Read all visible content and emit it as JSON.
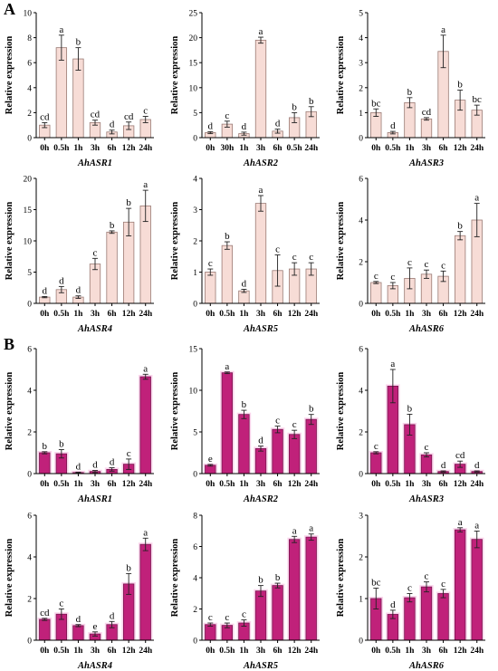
{
  "panels": [
    {
      "letter": "A"
    },
    {
      "letter": "B"
    }
  ],
  "ylabel": "Relative expression",
  "styles": {
    "A": {
      "fill": "#f7dcd6",
      "stroke": "#9a7a74"
    },
    "B": {
      "fill": "#c0217a",
      "stroke": "#7a1550",
      "glow": "#f6b3dc"
    }
  },
  "chart_data": [
    {
      "panel": "A",
      "type": "bar",
      "title": "AhASR1",
      "categories": [
        "0h",
        "0.5h",
        "1h",
        "3h",
        "6h",
        "12h",
        "24h"
      ],
      "values": [
        1.0,
        7.2,
        6.3,
        1.2,
        0.45,
        0.95,
        1.45
      ],
      "errors": [
        0.2,
        1.0,
        0.9,
        0.2,
        0.15,
        0.3,
        0.25
      ],
      "letters": [
        "cd",
        "a",
        "b",
        "cd",
        "d",
        "cd",
        "c"
      ],
      "ylim": [
        0,
        10
      ],
      "yticks": [
        0,
        2,
        4,
        6,
        8,
        10
      ]
    },
    {
      "panel": "A",
      "type": "bar",
      "title": "AhASR2",
      "categories": [
        "0h",
        "30h",
        "1h",
        "3h",
        "6h",
        "0.5h",
        "24h"
      ],
      "values": [
        1.0,
        2.7,
        0.8,
        19.5,
        1.3,
        4.0,
        5.2
      ],
      "errors": [
        0.2,
        0.6,
        0.3,
        0.6,
        0.4,
        1.0,
        1.0
      ],
      "letters": [
        "d",
        "c",
        "d",
        "a",
        "d",
        "b",
        "b"
      ],
      "ylim": [
        0,
        25
      ],
      "yticks": [
        0,
        5,
        10,
        15,
        20,
        25
      ]
    },
    {
      "panel": "A",
      "type": "bar",
      "title": "AhASR3",
      "categories": [
        "0h",
        "0.5h",
        "1h",
        "3h",
        "6h",
        "12h",
        "24h"
      ],
      "values": [
        1.0,
        0.2,
        1.4,
        0.75,
        3.45,
        1.5,
        1.1
      ],
      "errors": [
        0.15,
        0.05,
        0.2,
        0.05,
        0.65,
        0.4,
        0.2
      ],
      "letters": [
        "bc",
        "d",
        "b",
        "cd",
        "a",
        "b",
        "bc"
      ],
      "ylim": [
        0,
        5
      ],
      "yticks": [
        0,
        1,
        2,
        3,
        4,
        5
      ]
    },
    {
      "panel": "A",
      "type": "bar",
      "title": "AhASR4",
      "categories": [
        "0h",
        "0.5h",
        "1h",
        "3h",
        "6h",
        "12h",
        "24h"
      ],
      "values": [
        1.0,
        2.2,
        1.0,
        6.3,
        11.4,
        13.0,
        15.6
      ],
      "errors": [
        0.1,
        0.5,
        0.2,
        0.9,
        0.2,
        2.2,
        2.5
      ],
      "letters": [
        "d",
        "d",
        "d",
        "c",
        "b",
        "b",
        "a"
      ],
      "ylim": [
        0,
        20
      ],
      "yticks": [
        0,
        5,
        10,
        15,
        20
      ]
    },
    {
      "panel": "A",
      "type": "bar",
      "title": "AhASR5",
      "categories": [
        "0h",
        "0.5h",
        "1h",
        "3h",
        "6h",
        "12h",
        "24h"
      ],
      "values": [
        1.0,
        1.85,
        0.4,
        3.2,
        1.05,
        1.1,
        1.1
      ],
      "errors": [
        0.1,
        0.12,
        0.05,
        0.25,
        0.5,
        0.2,
        0.2
      ],
      "letters": [
        "c",
        "b",
        "d",
        "a",
        "c",
        "c",
        "c"
      ],
      "ylim": [
        0,
        4
      ],
      "yticks": [
        0,
        1,
        2,
        3,
        4
      ]
    },
    {
      "panel": "A",
      "type": "bar",
      "title": "AhASR6",
      "categories": [
        "0h",
        "0.5h",
        "1h",
        "3h",
        "6h",
        "12h",
        "24h"
      ],
      "values": [
        1.0,
        0.85,
        1.2,
        1.4,
        1.3,
        3.25,
        4.0
      ],
      "errors": [
        0.05,
        0.15,
        0.5,
        0.2,
        0.25,
        0.2,
        0.8
      ],
      "letters": [
        "c",
        "c",
        "c",
        "c",
        "c",
        "b",
        "a"
      ],
      "ylim": [
        0,
        6
      ],
      "yticks": [
        0,
        2,
        4,
        6
      ]
    },
    {
      "panel": "B",
      "type": "bar",
      "title": "AhASR1",
      "categories": [
        "0h",
        "0.5h",
        "1h",
        "3h",
        "6h",
        "12h",
        "24h"
      ],
      "values": [
        1.0,
        0.95,
        0.05,
        0.1,
        0.2,
        0.45,
        4.65
      ],
      "errors": [
        0.05,
        0.2,
        0.02,
        0.05,
        0.08,
        0.25,
        0.12
      ],
      "letters": [
        "b",
        "b",
        "d",
        "d",
        "d",
        "c",
        "a"
      ],
      "ylim": [
        0,
        6
      ],
      "yticks": [
        0,
        2,
        4,
        6
      ]
    },
    {
      "panel": "B",
      "type": "bar",
      "title": "AhASR2",
      "categories": [
        "0h",
        "0.5h",
        "1h",
        "3h",
        "6h",
        "12h",
        "24h"
      ],
      "values": [
        1.0,
        12.1,
        7.1,
        3.0,
        5.3,
        4.7,
        6.5
      ],
      "errors": [
        0.1,
        0.1,
        0.5,
        0.3,
        0.4,
        0.5,
        0.6
      ],
      "letters": [
        "e",
        "a",
        "b",
        "d",
        "c",
        "c",
        "b"
      ],
      "ylim": [
        0,
        15
      ],
      "yticks": [
        0,
        5,
        10,
        15
      ]
    },
    {
      "panel": "B",
      "type": "bar",
      "title": "AhASR3",
      "categories": [
        "0h",
        "0.5h",
        "1h",
        "3h",
        "6h",
        "12h",
        "24h"
      ],
      "values": [
        1.0,
        4.2,
        2.35,
        0.9,
        0.1,
        0.45,
        0.1
      ],
      "errors": [
        0.05,
        0.8,
        0.5,
        0.1,
        0.03,
        0.15,
        0.03
      ],
      "letters": [
        "c",
        "a",
        "b",
        "c",
        "d",
        "cd",
        "d"
      ],
      "ylim": [
        0,
        6
      ],
      "yticks": [
        0,
        2,
        4,
        6
      ]
    },
    {
      "panel": "B",
      "type": "bar",
      "title": "AhASR4",
      "categories": [
        "0h",
        "0.5h",
        "1h",
        "3h",
        "6h",
        "12h",
        "24h"
      ],
      "values": [
        1.0,
        1.25,
        0.7,
        0.3,
        0.75,
        2.7,
        4.6
      ],
      "errors": [
        0.05,
        0.25,
        0.05,
        0.1,
        0.15,
        0.5,
        0.3
      ],
      "letters": [
        "cd",
        "c",
        "d",
        "e",
        "d",
        "b",
        "a"
      ],
      "ylim": [
        0,
        6
      ],
      "yticks": [
        0,
        2,
        4,
        6
      ]
    },
    {
      "panel": "B",
      "type": "bar",
      "title": "AhASR5",
      "categories": [
        "0h",
        "0.5h",
        "1h",
        "3h",
        "6h",
        "12h",
        "24h"
      ],
      "values": [
        1.0,
        0.95,
        1.1,
        3.15,
        3.5,
        6.45,
        6.6
      ],
      "errors": [
        0.1,
        0.15,
        0.2,
        0.35,
        0.15,
        0.2,
        0.2
      ],
      "letters": [
        "c",
        "c",
        "c",
        "b",
        "b",
        "a",
        "a"
      ],
      "ylim": [
        0,
        8
      ],
      "yticks": [
        0,
        2,
        4,
        6,
        8
      ]
    },
    {
      "panel": "B",
      "type": "bar",
      "title": "AhASR6",
      "categories": [
        "0h",
        "0.5h",
        "1h",
        "3h",
        "6h",
        "12h",
        "24h"
      ],
      "values": [
        1.0,
        0.62,
        1.02,
        1.28,
        1.12,
        2.65,
        2.42
      ],
      "errors": [
        0.25,
        0.1,
        0.1,
        0.12,
        0.1,
        0.05,
        0.2
      ],
      "letters": [
        "bc",
        "d",
        "c",
        "c",
        "c",
        "a",
        "a"
      ],
      "ylim": [
        0,
        3
      ],
      "yticks": [
        0,
        1,
        2,
        3
      ]
    }
  ]
}
